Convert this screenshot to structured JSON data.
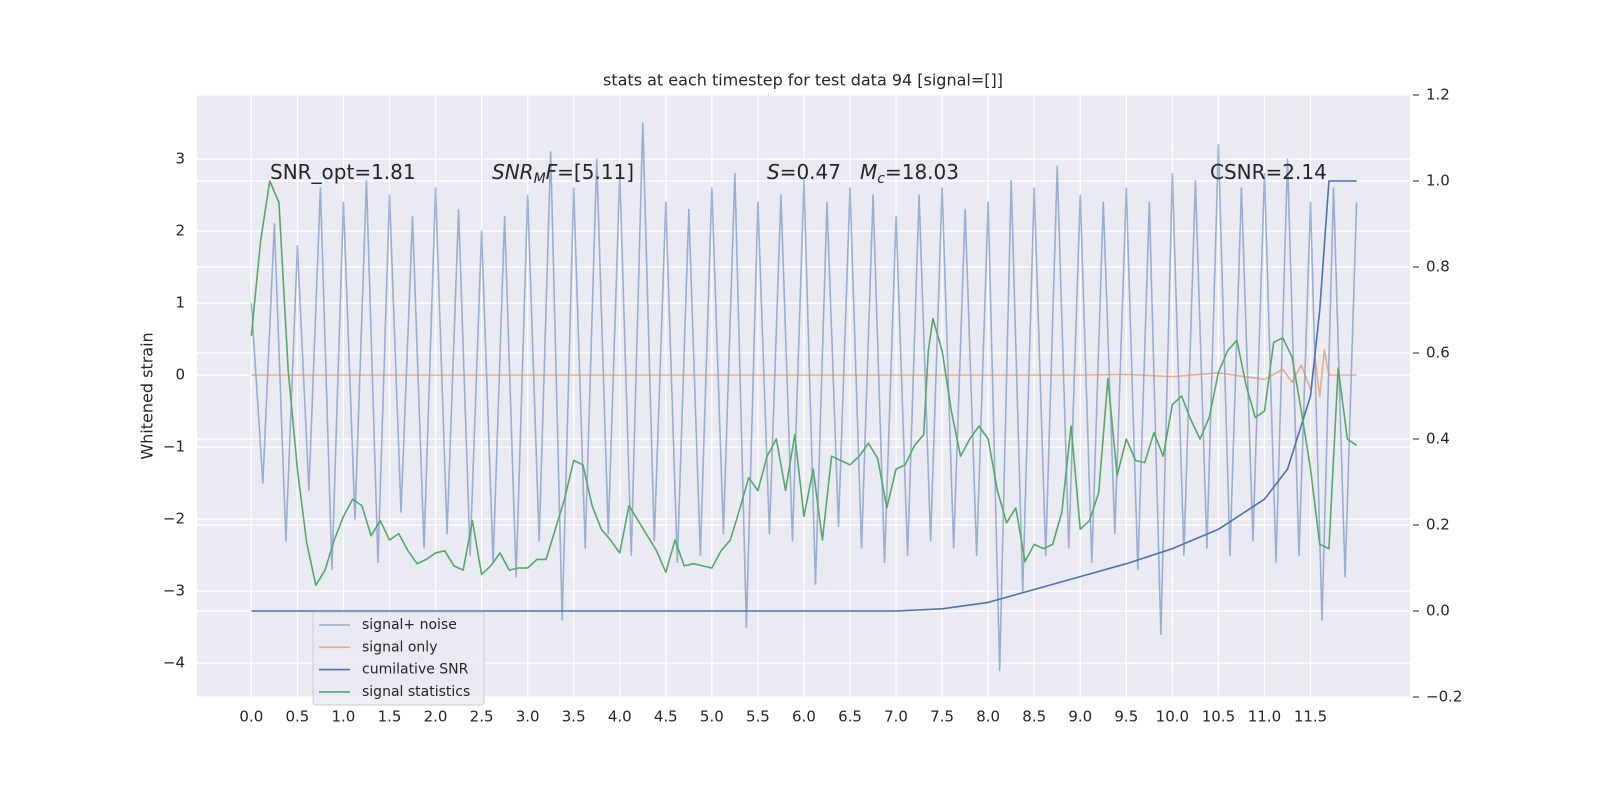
{
  "chart_data": {
    "type": "line",
    "title": "stats at each timestep for test data 94 [signal=[]]",
    "ylabel": "Whitened strain",
    "grid": true,
    "legend": "lower left",
    "xlim": [
      -0.59,
      12.58
    ],
    "ylim": [
      -4.47,
      3.89
    ],
    "y2lim": [
      -0.2,
      1.2
    ],
    "xticks": [
      {
        "value": 0,
        "label": "0.0"
      },
      0.5,
      {
        "value": 1,
        "label": "1.0"
      },
      1.5,
      {
        "value": 2,
        "label": "2.0"
      },
      2.5,
      {
        "value": 3,
        "label": "3.0"
      },
      3.5,
      {
        "value": 4,
        "label": "4.0"
      },
      4.5,
      {
        "value": 5,
        "label": "5.0"
      },
      5.5,
      {
        "value": 6,
        "label": "6.0"
      },
      6.5,
      {
        "value": 7,
        "label": "7.0"
      },
      7.5,
      {
        "value": 8,
        "label": "8.0"
      },
      8.5,
      {
        "value": 9,
        "label": "9.0"
      },
      9.5,
      {
        "value": 10,
        "label": "10.0"
      },
      10.5,
      {
        "value": 11,
        "label": "11.0"
      },
      11.5
    ],
    "yticks": [
      {
        "value": -4,
        "label": "−4"
      },
      {
        "value": -3,
        "label": "−3"
      },
      {
        "value": -2,
        "label": "−2"
      },
      {
        "value": -1,
        "label": "−1"
      },
      0,
      1,
      2,
      3
    ],
    "y2ticks": [
      {
        "value": -0.2,
        "label": "−0.2"
      },
      {
        "value": 0,
        "label": "0.0"
      },
      0.2,
      0.4,
      0.6,
      0.8,
      {
        "value": 1,
        "label": "1.0"
      },
      1.2
    ],
    "annotations": [
      [
        {
          "text": "SNR_opt=1.81"
        }
      ],
      [
        {
          "text": "SNR",
          "italic": true
        },
        {
          "text": "M",
          "italic": true,
          "sub": true
        },
        {
          "text": "F",
          "italic": true
        },
        {
          "text": "=[5.11]"
        }
      ],
      [
        {
          "text": "S",
          "italic": true
        },
        {
          "text": "=0.47"
        }
      ],
      [
        {
          "text": "M",
          "italic": true
        },
        {
          "text": "c",
          "italic": true,
          "sub": true
        },
        {
          "text": "=18.03"
        }
      ],
      [
        {
          "text": "CSNR=2.14"
        }
      ]
    ],
    "series": [
      {
        "name": "signal+ noise",
        "color": "#4c72b0",
        "opacity": 0.5,
        "x": [
          0,
          0.125,
          0.25,
          0.375,
          0.5,
          0.625,
          0.75,
          0.875,
          1,
          1.125,
          1.25,
          1.375,
          1.5,
          1.625,
          1.75,
          1.875,
          2,
          2.125,
          2.25,
          2.375,
          2.5,
          2.625,
          2.75,
          2.875,
          3,
          3.125,
          3.25,
          3.375,
          3.5,
          3.625,
          3.75,
          3.875,
          4,
          4.125,
          4.25,
          4.375,
          4.5,
          4.625,
          4.75,
          4.875,
          5,
          5.125,
          5.25,
          5.375,
          5.5,
          5.625,
          5.75,
          5.875,
          6,
          6.125,
          6.25,
          6.375,
          6.5,
          6.625,
          6.75,
          6.875,
          7,
          7.125,
          7.25,
          7.375,
          7.5,
          7.625,
          7.75,
          7.875,
          8,
          8.125,
          8.25,
          8.375,
          8.5,
          8.625,
          8.75,
          8.875,
          9,
          9.125,
          9.25,
          9.375,
          9.5,
          9.625,
          9.75,
          9.875,
          10,
          10.125,
          10.25,
          10.375,
          10.5,
          10.625,
          10.75,
          10.875,
          11,
          11.125,
          11.25,
          11.375,
          11.5,
          11.625,
          11.75,
          11.875,
          12
        ],
        "values": [
          1.0,
          -1.5,
          2.1,
          -2.3,
          1.8,
          -1.6,
          2.6,
          -2.7,
          2.4,
          -2.0,
          2.7,
          -2.6,
          2.5,
          -1.9,
          2.2,
          -2.4,
          2.6,
          -2.2,
          2.3,
          -2.5,
          2.0,
          -2.6,
          2.2,
          -2.8,
          2.5,
          -2.3,
          3.1,
          -3.4,
          2.6,
          -2.4,
          3.0,
          -2.2,
          2.8,
          -2.5,
          3.5,
          -2.3,
          2.4,
          -2.6,
          2.3,
          -2.5,
          2.6,
          -2.2,
          2.8,
          -3.5,
          2.4,
          -2.2,
          2.5,
          -2.3,
          2.7,
          -2.9,
          2.4,
          -2.1,
          2.6,
          -2.4,
          2.5,
          -2.6,
          2.2,
          -2.5,
          2.5,
          -2.3,
          2.6,
          -2.4,
          2.3,
          -2.5,
          2.4,
          -4.1,
          2.7,
          -3.0,
          2.6,
          -2.5,
          2.9,
          -2.4,
          2.5,
          -2.6,
          2.4,
          -2.2,
          2.6,
          -2.7,
          2.4,
          -3.6,
          2.8,
          -2.5,
          2.7,
          -2.4,
          3.2,
          -2.5,
          2.6,
          -2.3,
          2.8,
          -2.6,
          3.0,
          -2.5,
          2.4,
          -3.4,
          2.6,
          -2.8,
          2.4
        ]
      },
      {
        "name": "signal only",
        "color": "#dd8452",
        "opacity": 0.6,
        "x": [
          0,
          9,
          9.5,
          10,
          10.5,
          11,
          11.2,
          11.3,
          11.4,
          11.5,
          11.55,
          11.6,
          11.65,
          11.7,
          12
        ],
        "values": [
          0,
          0,
          0.01,
          -0.02,
          0.03,
          -0.06,
          0.08,
          -0.1,
          0.14,
          -0.2,
          0.25,
          -0.3,
          0.35,
          0,
          0
        ]
      },
      {
        "name": "cumilative SNR",
        "color": "#4c72b0",
        "opacity": 1,
        "axis": "y2",
        "x": [
          0,
          7,
          7.5,
          8,
          8.5,
          9,
          9.5,
          10,
          10.5,
          11,
          11.25,
          11.5,
          11.6,
          11.7,
          12
        ],
        "values": [
          0,
          0,
          0.005,
          0.02,
          0.05,
          0.08,
          0.11,
          0.145,
          0.19,
          0.26,
          0.33,
          0.5,
          0.7,
          1.0,
          1.0
        ]
      },
      {
        "name": "signal statistics",
        "color": "#55a868",
        "opacity": 1,
        "axis": "y2",
        "x": [
          0,
          0.1,
          0.2,
          0.3,
          0.4,
          0.5,
          0.6,
          0.7,
          0.8,
          0.9,
          1,
          1.1,
          1.2,
          1.3,
          1.4,
          1.5,
          1.6,
          1.7,
          1.8,
          1.9,
          2,
          2.1,
          2.2,
          2.3,
          2.4,
          2.5,
          2.6,
          2.7,
          2.8,
          2.9,
          3,
          3.1,
          3.2,
          3.3,
          3.4,
          3.5,
          3.6,
          3.7,
          3.8,
          3.9,
          4,
          4.1,
          4.2,
          4.3,
          4.4,
          4.5,
          4.6,
          4.7,
          4.8,
          4.9,
          5,
          5.1,
          5.2,
          5.3,
          5.4,
          5.5,
          5.6,
          5.7,
          5.8,
          5.9,
          6,
          6.1,
          6.2,
          6.3,
          6.4,
          6.5,
          6.6,
          6.7,
          6.8,
          6.9,
          7,
          7.1,
          7.2,
          7.3,
          7.35,
          7.4,
          7.5,
          7.6,
          7.7,
          7.8,
          7.9,
          8,
          8.1,
          8.2,
          8.3,
          8.4,
          8.5,
          8.6,
          8.7,
          8.8,
          8.9,
          9,
          9.1,
          9.2,
          9.3,
          9.4,
          9.5,
          9.6,
          9.7,
          9.8,
          9.9,
          10,
          10.1,
          10.2,
          10.3,
          10.4,
          10.5,
          10.6,
          10.7,
          10.8,
          10.9,
          11,
          11.1,
          11.2,
          11.3,
          11.4,
          11.5,
          11.6,
          11.7,
          11.8,
          11.9,
          12
        ],
        "values": [
          0.64,
          0.86,
          1.0,
          0.95,
          0.56,
          0.33,
          0.16,
          0.06,
          0.095,
          0.165,
          0.22,
          0.26,
          0.245,
          0.175,
          0.21,
          0.165,
          0.18,
          0.14,
          0.11,
          0.12,
          0.135,
          0.14,
          0.105,
          0.095,
          0.21,
          0.085,
          0.105,
          0.135,
          0.095,
          0.1,
          0.1,
          0.12,
          0.12,
          0.19,
          0.26,
          0.35,
          0.34,
          0.245,
          0.19,
          0.165,
          0.135,
          0.245,
          0.21,
          0.175,
          0.14,
          0.09,
          0.165,
          0.105,
          0.11,
          0.105,
          0.1,
          0.14,
          0.165,
          0.235,
          0.31,
          0.28,
          0.36,
          0.4,
          0.28,
          0.41,
          0.22,
          0.33,
          0.165,
          0.36,
          0.35,
          0.34,
          0.36,
          0.39,
          0.355,
          0.24,
          0.33,
          0.34,
          0.385,
          0.41,
          0.605,
          0.68,
          0.605,
          0.465,
          0.36,
          0.4,
          0.43,
          0.4,
          0.28,
          0.205,
          0.24,
          0.115,
          0.155,
          0.145,
          0.155,
          0.23,
          0.43,
          0.19,
          0.21,
          0.275,
          0.54,
          0.315,
          0.4,
          0.35,
          0.345,
          0.415,
          0.36,
          0.48,
          0.5,
          0.445,
          0.4,
          0.45,
          0.555,
          0.605,
          0.63,
          0.525,
          0.45,
          0.465,
          0.625,
          0.635,
          0.59,
          0.465,
          0.33,
          0.155,
          0.145,
          0.565,
          0.4,
          0.385
        ]
      }
    ]
  }
}
